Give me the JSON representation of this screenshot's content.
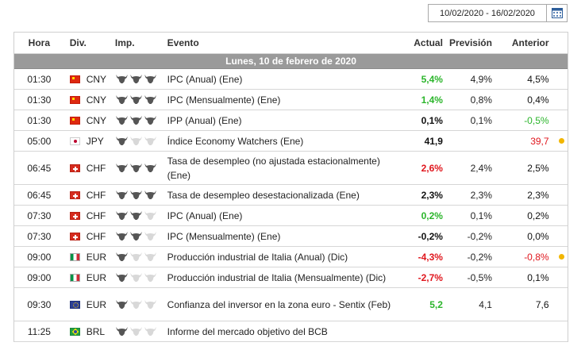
{
  "date_range": "10/02/2020 - 16/02/2020",
  "headers": {
    "hora": "Hora",
    "div": "Div.",
    "imp": "Imp.",
    "evento": "Evento",
    "actual": "Actual",
    "prevision": "Previsión",
    "anterior": "Anterior"
  },
  "day_label": "Lunes, 10 de febrero de 2020",
  "colors": {
    "up": "#2bb52b",
    "down": "#e0161d",
    "dot": "#f2b600",
    "bull_active": "#555555",
    "bull_inactive": "#d8d8d8"
  },
  "events": [
    {
      "time": "01:30",
      "flag": "cn",
      "currency": "CNY",
      "importance": 3,
      "event": "IPC (Anual) (Ene)",
      "actual": "5,4%",
      "actual_color": "green",
      "forecast": "4,9%",
      "previous": "4,5%",
      "previous_color": "black",
      "dot": false,
      "tall": false
    },
    {
      "time": "01:30",
      "flag": "cn",
      "currency": "CNY",
      "importance": 3,
      "event": "IPC (Mensualmente) (Ene)",
      "actual": "1,4%",
      "actual_color": "green",
      "forecast": "0,8%",
      "previous": "0,4%",
      "previous_color": "black",
      "dot": false,
      "tall": false
    },
    {
      "time": "01:30",
      "flag": "cn",
      "currency": "CNY",
      "importance": 3,
      "event": "IPP (Anual) (Ene)",
      "actual": "0,1%",
      "actual_color": "black",
      "forecast": "0,1%",
      "previous": "-0,5%",
      "previous_color": "green",
      "dot": false,
      "tall": false
    },
    {
      "time": "05:00",
      "flag": "jp",
      "currency": "JPY",
      "importance": 1,
      "event": "Índice Economy Watchers (Ene)",
      "actual": "41,9",
      "actual_color": "black",
      "forecast": "",
      "previous": "39,7",
      "previous_color": "red",
      "dot": true,
      "tall": false
    },
    {
      "time": "06:45",
      "flag": "ch",
      "currency": "CHF",
      "importance": 3,
      "event": "Tasa de desempleo (no ajustada estacionalmente) (Ene)",
      "actual": "2,6%",
      "actual_color": "red",
      "forecast": "2,4%",
      "previous": "2,5%",
      "previous_color": "black",
      "dot": false,
      "tall": true
    },
    {
      "time": "06:45",
      "flag": "ch",
      "currency": "CHF",
      "importance": 3,
      "event": "Tasa de desempleo desestacionalizada (Ene)",
      "actual": "2,3%",
      "actual_color": "black",
      "forecast": "2,3%",
      "previous": "2,3%",
      "previous_color": "black",
      "dot": false,
      "tall": false
    },
    {
      "time": "07:30",
      "flag": "ch",
      "currency": "CHF",
      "importance": 2,
      "event": "IPC (Anual) (Ene)",
      "actual": "0,2%",
      "actual_color": "green",
      "forecast": "0,1%",
      "previous": "0,2%",
      "previous_color": "black",
      "dot": false,
      "tall": false
    },
    {
      "time": "07:30",
      "flag": "ch",
      "currency": "CHF",
      "importance": 2,
      "event": "IPC (Mensualmente) (Ene)",
      "actual": "-0,2%",
      "actual_color": "black",
      "forecast": "-0,2%",
      "previous": "0,0%",
      "previous_color": "black",
      "dot": false,
      "tall": false
    },
    {
      "time": "09:00",
      "flag": "it",
      "currency": "EUR",
      "importance": 1,
      "event": "Producción industrial de Italia (Anual) (Dic)",
      "actual": "-4,3%",
      "actual_color": "red",
      "forecast": "-0,2%",
      "previous": "-0,8%",
      "previous_color": "red",
      "dot": true,
      "tall": false
    },
    {
      "time": "09:00",
      "flag": "it",
      "currency": "EUR",
      "importance": 1,
      "event": "Producción industrial de Italia (Mensualmente) (Dic)",
      "actual": "-2,7%",
      "actual_color": "red",
      "forecast": "-0,5%",
      "previous": "0,1%",
      "previous_color": "black",
      "dot": false,
      "tall": false
    },
    {
      "time": "09:30",
      "flag": "eu",
      "currency": "EUR",
      "importance": 1,
      "event": "Confianza del inversor en la zona euro - Sentix (Feb)",
      "actual": "5,2",
      "actual_color": "green",
      "forecast": "4,1",
      "previous": "7,6",
      "previous_color": "black",
      "dot": false,
      "tall": true,
      "forecast_plain": true,
      "previous_plain": true
    },
    {
      "time": "11:25",
      "flag": "br",
      "currency": "BRL",
      "importance": 1,
      "event": "Informe del mercado objetivo del BCB",
      "actual": "",
      "actual_color": "black",
      "forecast": "",
      "previous": "",
      "previous_color": "black",
      "dot": false,
      "tall": false
    }
  ]
}
